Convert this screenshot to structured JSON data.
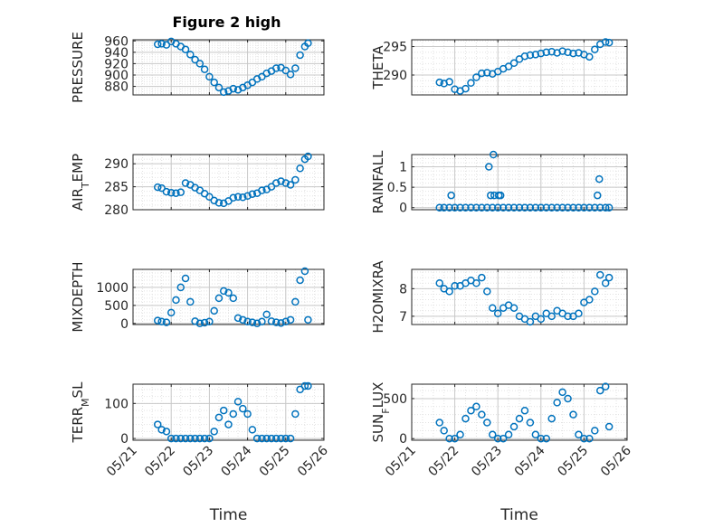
{
  "figure": {
    "title": "Figure 2 high",
    "xlabel": "Time"
  },
  "colors": {
    "marker": "#0072BD",
    "axis": "#262626",
    "grid": "#c8c8c8",
    "grid_minor": "#e2e2e2"
  },
  "chart_data": [
    {
      "type": "scatter",
      "title": "Figure 2 high",
      "ylabel": "PRESSURE",
      "xlim": [
        "05/21",
        "05/26"
      ],
      "ylim": [
        865,
        962
      ],
      "yticks": [
        880,
        900,
        920,
        940,
        960
      ],
      "yticklabels": [
        "880",
        "900",
        "920",
        "940",
        "960"
      ],
      "xticks": [
        "05/21",
        "05/22",
        "05/23",
        "05/24",
        "05/25",
        "05/26"
      ],
      "x": [
        "05/21 15:30",
        "05/21 18:00",
        "05/21 21:00",
        "05/22 00:00",
        "05/22 03:00",
        "05/22 06:00",
        "05/22 09:00",
        "05/22 12:00",
        "05/22 15:00",
        "05/22 18:00",
        "05/22 21:00",
        "05/23 00:00",
        "05/23 03:00",
        "05/23 06:00",
        "05/23 09:00",
        "05/23 12:00",
        "05/23 15:00",
        "05/23 18:00",
        "05/23 21:00",
        "05/24 00:00",
        "05/24 03:00",
        "05/24 06:00",
        "05/24 09:00",
        "05/24 12:00",
        "05/24 15:00",
        "05/24 18:00",
        "05/24 21:00",
        "05/25 00:00",
        "05/25 03:00",
        "05/25 06:00",
        "05/25 09:00",
        "05/25 12:00",
        "05/25 14:00"
      ],
      "y": [
        954,
        955,
        953,
        959,
        955,
        950,
        945,
        936,
        927,
        920,
        910,
        897,
        887,
        878,
        870,
        872,
        876,
        874,
        878,
        882,
        887,
        893,
        897,
        903,
        907,
        912,
        913,
        908,
        901,
        912,
        935,
        950,
        956
      ]
    },
    {
      "type": "scatter",
      "ylabel": "THETA",
      "xlim": [
        "05/21",
        "05/26"
      ],
      "ylim": [
        286.5,
        296.2
      ],
      "yticks": [
        290,
        295
      ],
      "yticklabels": [
        "290",
        "295"
      ],
      "xticks": [
        "05/21",
        "05/22",
        "05/23",
        "05/24",
        "05/25",
        "05/26"
      ],
      "x": [
        "05/21 15:30",
        "05/21 18:00",
        "05/21 21:00",
        "05/22 00:00",
        "05/22 03:00",
        "05/22 06:00",
        "05/22 09:00",
        "05/22 12:00",
        "05/22 15:00",
        "05/22 18:00",
        "05/22 21:00",
        "05/23 00:00",
        "05/23 03:00",
        "05/23 06:00",
        "05/23 09:00",
        "05/23 12:00",
        "05/23 15:00",
        "05/23 18:00",
        "05/23 21:00",
        "05/24 00:00",
        "05/24 03:00",
        "05/24 06:00",
        "05/24 09:00",
        "05/24 12:00",
        "05/24 15:00",
        "05/24 18:00",
        "05/24 21:00",
        "05/25 00:00",
        "05/25 03:00",
        "05/25 06:00",
        "05/25 09:00",
        "05/25 12:00",
        "05/25 14:00"
      ],
      "y": [
        288.7,
        288.5,
        288.8,
        287.5,
        287.2,
        287.6,
        288.6,
        289.6,
        290.3,
        290.4,
        290.2,
        290.6,
        291.1,
        291.5,
        292.1,
        292.8,
        293.3,
        293.5,
        293.6,
        293.8,
        294.0,
        294.1,
        293.9,
        294.2,
        294.0,
        293.8,
        293.9,
        293.6,
        293.2,
        294.5,
        295.4,
        295.8,
        295.7
      ]
    },
    {
      "type": "scatter",
      "ylabel": "AIR_TEMP",
      "xlim": [
        "05/21",
        "05/26"
      ],
      "ylim": [
        280,
        292
      ],
      "yticks": [
        280,
        285,
        290
      ],
      "yticklabels": [
        "280",
        "285",
        "290"
      ],
      "xticks": [
        "05/21",
        "05/22",
        "05/23",
        "05/24",
        "05/25",
        "05/26"
      ],
      "x": [
        "05/21 15:30",
        "05/21 18:00",
        "05/21 21:00",
        "05/22 00:00",
        "05/22 03:00",
        "05/22 06:00",
        "05/22 09:00",
        "05/22 12:00",
        "05/22 15:00",
        "05/22 18:00",
        "05/22 21:00",
        "05/23 00:00",
        "05/23 03:00",
        "05/23 06:00",
        "05/23 09:00",
        "05/23 12:00",
        "05/23 15:00",
        "05/23 18:00",
        "05/23 21:00",
        "05/24 00:00",
        "05/24 03:00",
        "05/24 06:00",
        "05/24 09:00",
        "05/24 12:00",
        "05/24 15:00",
        "05/24 18:00",
        "05/24 21:00",
        "05/25 00:00",
        "05/25 03:00",
        "05/25 06:00",
        "05/25 09:00",
        "05/25 12:00",
        "05/25 14:00"
      ],
      "y": [
        284.9,
        284.7,
        283.9,
        283.7,
        283.6,
        283.8,
        285.8,
        285.4,
        284.8,
        284.2,
        283.5,
        282.8,
        282.0,
        281.5,
        281.4,
        281.9,
        282.6,
        282.8,
        282.7,
        283.0,
        283.4,
        283.6,
        284.2,
        284.4,
        285.0,
        285.8,
        286.2,
        285.8,
        285.4,
        286.5,
        289.0,
        291.0,
        291.6
      ]
    },
    {
      "type": "scatter",
      "ylabel": "RAINFALL",
      "xlim": [
        "05/21",
        "05/26"
      ],
      "ylim": [
        -0.05,
        1.3
      ],
      "yticks": [
        0,
        0.5,
        1
      ],
      "yticklabels": [
        "0",
        "0.5",
        "1"
      ],
      "xticks": [
        "05/21",
        "05/22",
        "05/23",
        "05/24",
        "05/25",
        "05/26"
      ],
      "x": [
        "05/21 15:30",
        "05/21 18:00",
        "05/21 21:00",
        "05/22 00:00",
        "05/22 03:00",
        "05/22 06:00",
        "05/22 09:00",
        "05/22 12:00",
        "05/22 15:00",
        "05/22 18:00",
        "05/22 21:00",
        "05/23 00:00",
        "05/23 03:00",
        "05/23 06:00",
        "05/23 09:00",
        "05/23 12:00",
        "05/23 15:00",
        "05/23 18:00",
        "05/23 21:00",
        "05/24 00:00",
        "05/24 03:00",
        "05/24 06:00",
        "05/24 09:00",
        "05/24 12:00",
        "05/24 15:00",
        "05/24 18:00",
        "05/24 21:00",
        "05/25 00:00",
        "05/25 03:00",
        "05/25 06:00",
        "05/25 09:00",
        "05/25 12:00",
        "05/25 14:00",
        "05/21 22:00",
        "05/22 19:00",
        "05/22 20:00",
        "05/22 21:30",
        "05/22 22:00",
        "05/23 00:30",
        "05/23 01:30",
        "05/25 07:30",
        "05/25 08:30"
      ],
      "y": [
        0,
        0,
        0,
        0,
        0,
        0,
        0,
        0,
        0,
        0,
        0,
        0,
        0,
        0,
        0,
        0,
        0,
        0,
        0,
        0,
        0,
        0,
        0,
        0,
        0,
        0,
        0,
        0,
        0,
        0,
        0,
        0,
        0,
        0.3,
        1.0,
        0.3,
        1.3,
        0.3,
        0.3,
        0.3,
        0.3,
        0.7
      ]
    },
    {
      "type": "scatter",
      "ylabel": "MIXDEPTH",
      "xlim": [
        "05/21",
        "05/26"
      ],
      "ylim": [
        -30,
        1500
      ],
      "yticks": [
        0,
        500,
        1000
      ],
      "yticklabels": [
        "0",
        "500",
        "1000"
      ],
      "xticks": [
        "05/21",
        "05/22",
        "05/23",
        "05/24",
        "05/25",
        "05/26"
      ],
      "x": [
        "05/21 15:30",
        "05/21 18:00",
        "05/21 21:00",
        "05/22 00:00",
        "05/22 03:00",
        "05/22 06:00",
        "05/22 09:00",
        "05/22 12:00",
        "05/22 15:00",
        "05/22 18:00",
        "05/22 21:00",
        "05/23 00:00",
        "05/23 03:00",
        "05/23 06:00",
        "05/23 09:00",
        "05/23 12:00",
        "05/23 15:00",
        "05/23 18:00",
        "05/23 21:00",
        "05/24 00:00",
        "05/24 03:00",
        "05/24 06:00",
        "05/24 09:00",
        "05/24 12:00",
        "05/24 15:00",
        "05/24 18:00",
        "05/24 21:00",
        "05/25 00:00",
        "05/25 03:00",
        "05/25 06:00",
        "05/25 09:00",
        "05/25 12:00",
        "05/25 14:00"
      ],
      "y": [
        80,
        50,
        30,
        300,
        650,
        1000,
        1250,
        600,
        60,
        0,
        20,
        50,
        350,
        700,
        900,
        850,
        700,
        150,
        100,
        50,
        30,
        0,
        50,
        250,
        60,
        30,
        10,
        50,
        100,
        600,
        1200,
        1450,
        100
      ]
    },
    {
      "type": "scatter",
      "ylabel": "H2OMIXRA",
      "xlim": [
        "05/21",
        "05/26"
      ],
      "ylim": [
        6.7,
        8.7
      ],
      "yticks": [
        7,
        8
      ],
      "yticklabels": [
        "7",
        "8"
      ],
      "xticks": [
        "05/21",
        "05/22",
        "05/23",
        "05/24",
        "05/25",
        "05/26"
      ],
      "x": [
        "05/21 15:30",
        "05/21 18:00",
        "05/21 21:00",
        "05/22 00:00",
        "05/22 03:00",
        "05/22 06:00",
        "05/22 09:00",
        "05/22 12:00",
        "05/22 15:00",
        "05/22 18:00",
        "05/22 21:00",
        "05/23 00:00",
        "05/23 03:00",
        "05/23 06:00",
        "05/23 09:00",
        "05/23 12:00",
        "05/23 15:00",
        "05/23 18:00",
        "05/23 21:00",
        "05/24 00:00",
        "05/24 03:00",
        "05/24 06:00",
        "05/24 09:00",
        "05/24 12:00",
        "05/24 15:00",
        "05/24 18:00",
        "05/24 21:00",
        "05/25 00:00",
        "05/25 03:00",
        "05/25 06:00",
        "05/25 09:00",
        "05/25 12:00",
        "05/25 14:00"
      ],
      "y": [
        8.2,
        8.0,
        7.9,
        8.1,
        8.1,
        8.2,
        8.3,
        8.2,
        8.4,
        7.9,
        7.3,
        7.1,
        7.3,
        7.4,
        7.3,
        7.0,
        6.9,
        6.8,
        7.0,
        6.9,
        7.1,
        7.0,
        7.2,
        7.1,
        7.0,
        7.0,
        7.1,
        7.5,
        7.6,
        7.9,
        8.5,
        8.2,
        8.4
      ]
    },
    {
      "type": "scatter",
      "ylabel": "TERR_MSL",
      "xlim": [
        "05/21",
        "05/26"
      ],
      "ylim": [
        -5,
        155
      ],
      "yticks": [
        0,
        100
      ],
      "yticklabels": [
        "0",
        "100"
      ],
      "xticks": [
        "05/21",
        "05/22",
        "05/23",
        "05/24",
        "05/25",
        "05/26"
      ],
      "x": [
        "05/21 15:30",
        "05/21 18:00",
        "05/21 21:00",
        "05/22 00:00",
        "05/22 03:00",
        "05/22 06:00",
        "05/22 09:00",
        "05/22 12:00",
        "05/22 15:00",
        "05/22 18:00",
        "05/22 21:00",
        "05/23 00:00",
        "05/23 03:00",
        "05/23 06:00",
        "05/23 09:00",
        "05/23 12:00",
        "05/23 15:00",
        "05/23 18:00",
        "05/23 21:00",
        "05/24 00:00",
        "05/24 03:00",
        "05/24 06:00",
        "05/24 09:00",
        "05/24 12:00",
        "05/24 15:00",
        "05/24 18:00",
        "05/24 21:00",
        "05/25 00:00",
        "05/25 03:00",
        "05/25 06:00",
        "05/25 09:00",
        "05/25 12:00",
        "05/25 14:00"
      ],
      "y": [
        40,
        25,
        20,
        0,
        0,
        0,
        0,
        0,
        0,
        0,
        0,
        0,
        20,
        60,
        80,
        40,
        70,
        105,
        85,
        70,
        25,
        0,
        0,
        0,
        0,
        0,
        0,
        0,
        0,
        70,
        140,
        150,
        150
      ]
    },
    {
      "type": "scatter",
      "ylabel": "SUN_FLUX",
      "xlim": [
        "05/21",
        "05/26"
      ],
      "ylim": [
        -20,
        680
      ],
      "yticks": [
        0,
        500
      ],
      "yticklabels": [
        "0",
        "500"
      ],
      "xticks": [
        "05/21",
        "05/22",
        "05/23",
        "05/24",
        "05/25",
        "05/26"
      ],
      "x": [
        "05/21 15:30",
        "05/21 18:00",
        "05/21 21:00",
        "05/22 00:00",
        "05/22 03:00",
        "05/22 06:00",
        "05/22 09:00",
        "05/22 12:00",
        "05/22 15:00",
        "05/22 18:00",
        "05/22 21:00",
        "05/23 00:00",
        "05/23 03:00",
        "05/23 06:00",
        "05/23 09:00",
        "05/23 12:00",
        "05/23 15:00",
        "05/23 18:00",
        "05/23 21:00",
        "05/24 00:00",
        "05/24 03:00",
        "05/24 06:00",
        "05/24 09:00",
        "05/24 12:00",
        "05/24 15:00",
        "05/24 18:00",
        "05/24 21:00",
        "05/25 00:00",
        "05/25 03:00",
        "05/25 06:00",
        "05/25 09:00",
        "05/25 12:00",
        "05/25 14:00"
      ],
      "y": [
        200,
        100,
        0,
        0,
        50,
        250,
        350,
        400,
        300,
        200,
        50,
        0,
        0,
        50,
        150,
        250,
        350,
        200,
        50,
        0,
        0,
        250,
        450,
        580,
        500,
        300,
        50,
        0,
        0,
        100,
        600,
        650,
        150
      ]
    }
  ]
}
